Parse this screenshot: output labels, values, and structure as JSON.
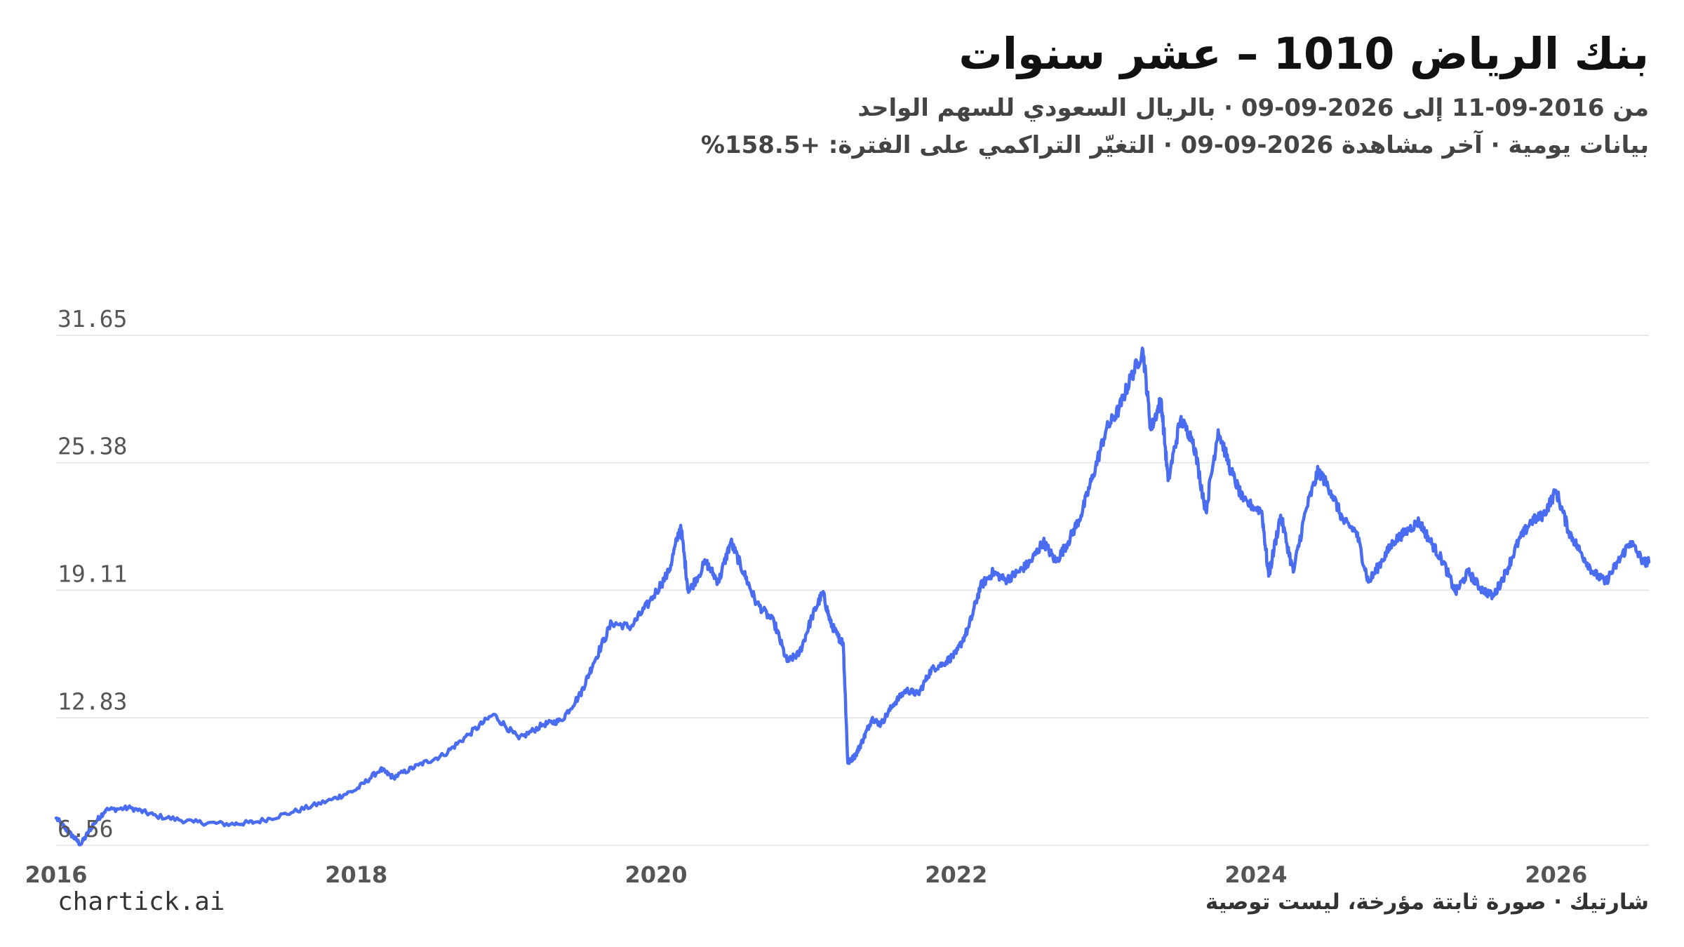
{
  "header": {
    "title": "بنك الرياض 1010 – عشر سنوات",
    "subtitle_1": "من 2016-09-11 إلى 2026-09-09 · بالريال السعودي للسهم الواحد",
    "subtitle_2": "بيانات يومية · آخر مشاهدة 2026-09-09 · التغيّر التراكمي على الفترة: +158.5%"
  },
  "footer": {
    "brand": "chartick.ai",
    "note": "شارتيك · صورة ثابتة مؤرخة، ليست توصية"
  },
  "colors": {
    "line": "#4a6cf0",
    "grid": "#e3e3e3",
    "axis_text": "#555555"
  },
  "chart_data": {
    "type": "line",
    "title": "بنك الرياض 1010 – عشر سنوات",
    "xlabel": "",
    "ylabel": "",
    "x_range": [
      "2016-01-01",
      "2026-08-15"
    ],
    "ylim": [
      6.56,
      31.65
    ],
    "y_ticks": [
      "6.56",
      "12.83",
      "19.11",
      "25.38",
      "31.65"
    ],
    "x_ticks": [
      "2016",
      "2018",
      "2020",
      "2022",
      "2024",
      "2026"
    ],
    "grid": "horizontal",
    "series": [
      {
        "values": [
          [
            "2016-01-01",
            7.9
          ],
          [
            "2016-02-01",
            7.2
          ],
          [
            "2016-03-01",
            6.6
          ],
          [
            "2016-04-01",
            7.6
          ],
          [
            "2016-05-01",
            8.3
          ],
          [
            "2016-07-01",
            8.4
          ],
          [
            "2016-09-01",
            8.0
          ],
          [
            "2016-12-01",
            7.7
          ],
          [
            "2017-03-01",
            7.6
          ],
          [
            "2017-05-01",
            7.7
          ],
          [
            "2017-08-01",
            8.2
          ],
          [
            "2017-11-01",
            8.8
          ],
          [
            "2018-01-01",
            9.3
          ],
          [
            "2018-03-01",
            10.3
          ],
          [
            "2018-04-01",
            9.9
          ],
          [
            "2018-06-01",
            10.5
          ],
          [
            "2018-08-01",
            11.0
          ],
          [
            "2018-10-01",
            12.0
          ],
          [
            "2018-12-01",
            13.0
          ],
          [
            "2019-02-01",
            11.8
          ],
          [
            "2019-04-01",
            12.5
          ],
          [
            "2019-05-15",
            12.7
          ],
          [
            "2019-07-01",
            14.0
          ],
          [
            "2019-08-01",
            15.5
          ],
          [
            "2019-09-15",
            17.5
          ],
          [
            "2019-11-01",
            17.3
          ],
          [
            "2019-12-15",
            18.5
          ],
          [
            "2020-02-01",
            20.0
          ],
          [
            "2020-03-01",
            22.3
          ],
          [
            "2020-03-20",
            19.0
          ],
          [
            "2020-05-01",
            20.5
          ],
          [
            "2020-06-01",
            19.5
          ],
          [
            "2020-07-01",
            21.5
          ],
          [
            "2020-08-01",
            20.0
          ],
          [
            "2020-09-01",
            18.5
          ],
          [
            "2020-10-15",
            17.5
          ],
          [
            "2020-11-15",
            15.6
          ],
          [
            "2020-12-15",
            16.0
          ],
          [
            "2021-01-15",
            17.8
          ],
          [
            "2021-02-10",
            19.0
          ],
          [
            "2021-03-01",
            17.5
          ],
          [
            "2021-03-20",
            16.8
          ],
          [
            "2021-04-01",
            16.5
          ],
          [
            "2021-04-12",
            10.6
          ],
          [
            "2021-05-01",
            11.0
          ],
          [
            "2021-05-20",
            11.8
          ],
          [
            "2021-06-10",
            12.8
          ],
          [
            "2021-07-01",
            12.5
          ],
          [
            "2021-08-01",
            13.5
          ],
          [
            "2021-09-01",
            14.2
          ],
          [
            "2021-10-01",
            14.0
          ],
          [
            "2021-11-01",
            15.2
          ],
          [
            "2021-12-01",
            15.5
          ],
          [
            "2022-01-01",
            16.0
          ],
          [
            "2022-02-01",
            17.3
          ],
          [
            "2022-03-01",
            19.3
          ],
          [
            "2022-04-01",
            20.0
          ],
          [
            "2022-05-01",
            19.6
          ],
          [
            "2022-06-01",
            20.0
          ],
          [
            "2022-07-01",
            20.5
          ],
          [
            "2022-08-01",
            21.5
          ],
          [
            "2022-09-01",
            20.5
          ],
          [
            "2022-10-01",
            21.5
          ],
          [
            "2022-11-01",
            22.8
          ],
          [
            "2022-12-01",
            24.8
          ],
          [
            "2023-01-01",
            27.0
          ],
          [
            "2023-02-01",
            28.0
          ],
          [
            "2023-03-01",
            29.5
          ],
          [
            "2023-04-01",
            30.9
          ],
          [
            "2023-04-20",
            27.0
          ],
          [
            "2023-05-15",
            28.5
          ],
          [
            "2023-06-01",
            24.5
          ],
          [
            "2023-07-01",
            27.5
          ],
          [
            "2023-08-01",
            26.5
          ],
          [
            "2023-09-01",
            23.0
          ],
          [
            "2023-10-01",
            27.0
          ],
          [
            "2023-11-01",
            25.0
          ],
          [
            "2023-12-01",
            23.5
          ],
          [
            "2024-01-15",
            23.0
          ],
          [
            "2024-02-01",
            19.8
          ],
          [
            "2024-03-01",
            22.8
          ],
          [
            "2024-04-01",
            20.0
          ],
          [
            "2024-05-01",
            23.0
          ],
          [
            "2024-06-01",
            25.0
          ],
          [
            "2024-07-01",
            24.0
          ],
          [
            "2024-08-01",
            22.5
          ],
          [
            "2024-09-01",
            22.0
          ],
          [
            "2024-10-01",
            19.5
          ],
          [
            "2024-11-01",
            20.5
          ],
          [
            "2024-12-01",
            21.5
          ],
          [
            "2025-01-01",
            22.0
          ],
          [
            "2025-02-01",
            22.5
          ],
          [
            "2025-03-01",
            21.5
          ],
          [
            "2025-04-01",
            20.5
          ],
          [
            "2025-05-01",
            19.0
          ],
          [
            "2025-06-01",
            20.0
          ],
          [
            "2025-07-01",
            19.2
          ],
          [
            "2025-08-01",
            18.8
          ],
          [
            "2025-09-01",
            20.0
          ],
          [
            "2025-10-01",
            21.5
          ],
          [
            "2025-11-01",
            22.5
          ],
          [
            "2025-12-01",
            22.8
          ],
          [
            "2026-01-01",
            24.0
          ],
          [
            "2026-02-01",
            22.0
          ],
          [
            "2026-03-01",
            21.0
          ],
          [
            "2026-04-01",
            20.0
          ],
          [
            "2026-05-01",
            19.5
          ],
          [
            "2026-06-01",
            20.5
          ],
          [
            "2026-07-01",
            21.5
          ],
          [
            "2026-08-01",
            20.5
          ],
          [
            "2026-08-15",
            20.5
          ]
        ]
      }
    ]
  }
}
